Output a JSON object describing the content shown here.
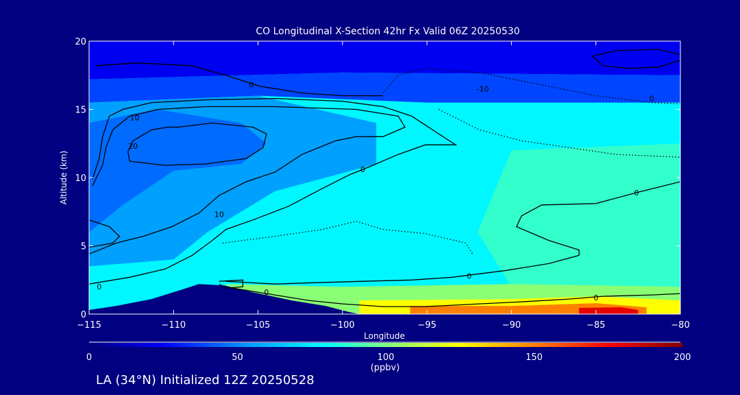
{
  "chart_data": {
    "type": "heatmap",
    "subtype": "filled-contour cross-section",
    "title": "CO Longitudinal X-Section 42hr  Fx Valid 06Z 20250530",
    "xlabel": "Longitude",
    "ylabel": "Altitude (km)",
    "xlim": [
      -115,
      -80
    ],
    "ylim": [
      0,
      20
    ],
    "xticks": [
      -115,
      -110,
      -105,
      -100,
      -95,
      -90,
      -85,
      -80
    ],
    "xtick_labels": [
      "−115",
      "−110",
      "−105",
      "−100",
      "−95",
      "−90",
      "−85",
      "−80"
    ],
    "yticks": [
      0,
      5,
      10,
      15,
      20
    ],
    "ytick_labels": [
      "0",
      "5",
      "10",
      "15",
      "20"
    ],
    "colorbar": {
      "range": [
        0,
        200
      ],
      "ticks": [
        0,
        50,
        100,
        150,
        200
      ],
      "tick_labels": [
        "0",
        "50",
        "100",
        "150",
        "200"
      ],
      "unit_label": "(ppbv)",
      "stops": [
        [
          0,
          "#000080"
        ],
        [
          25,
          "#0000ff"
        ],
        [
          55,
          "#00a0ff"
        ],
        [
          80,
          "#00ffff"
        ],
        [
          100,
          "#80ff80"
        ],
        [
          125,
          "#ffff00"
        ],
        [
          150,
          "#ff8000"
        ],
        [
          175,
          "#ff0000"
        ],
        [
          200,
          "#800000"
        ]
      ]
    },
    "base_value": 78,
    "fill_regions": [
      {
        "value": 22,
        "points": [
          [
            -115,
            20
          ],
          [
            -80,
            20
          ],
          [
            -80,
            17.5
          ],
          [
            -100,
            17.7
          ],
          [
            -115,
            17.2
          ]
        ]
      },
      {
        "value": 38,
        "points": [
          [
            -115,
            17.2
          ],
          [
            -100,
            17.7
          ],
          [
            -80,
            17.5
          ],
          [
            -80,
            15.5
          ],
          [
            -95,
            15.5
          ],
          [
            -105,
            16
          ],
          [
            -115,
            15.5
          ]
        ]
      },
      {
        "value": 55,
        "points": [
          [
            -115,
            15.5
          ],
          [
            -105,
            16
          ],
          [
            -98,
            14
          ],
          [
            -98,
            11
          ],
          [
            -104,
            9
          ],
          [
            -108,
            6
          ],
          [
            -110,
            4
          ],
          [
            -115,
            3.5
          ]
        ]
      },
      {
        "value": 45,
        "points": [
          [
            -115,
            14
          ],
          [
            -111,
            15
          ],
          [
            -106,
            14
          ],
          [
            -104.5,
            12.5
          ],
          [
            -106,
            11
          ],
          [
            -110,
            10.5
          ],
          [
            -113,
            8
          ],
          [
            -115,
            6
          ]
        ]
      },
      {
        "value": 88,
        "points": [
          [
            -90,
            12
          ],
          [
            -80,
            12.5
          ],
          [
            -80,
            2
          ],
          [
            -90,
            2
          ],
          [
            -92,
            6
          ]
        ]
      },
      {
        "value": 102,
        "points": [
          [
            -107,
            2.2
          ],
          [
            -100,
            2
          ],
          [
            -90,
            2.2
          ],
          [
            -80,
            2
          ],
          [
            -80,
            0
          ],
          [
            -104,
            0
          ]
        ]
      },
      {
        "value": 125,
        "points": [
          [
            -99,
            1
          ],
          [
            -90,
            1.1
          ],
          [
            -85,
            1.3
          ],
          [
            -80,
            1
          ],
          [
            -80,
            0
          ],
          [
            -99,
            0
          ]
        ]
      },
      {
        "value": 150,
        "points": [
          [
            -96,
            0.6
          ],
          [
            -90,
            0.6
          ],
          [
            -85,
            0.8
          ],
          [
            -82,
            0.5
          ],
          [
            -82,
            0
          ],
          [
            -96,
            0
          ]
        ]
      },
      {
        "value": 180,
        "points": [
          [
            -86,
            0.45
          ],
          [
            -83.5,
            0.5
          ],
          [
            -82.5,
            0.3
          ],
          [
            -82.5,
            0
          ],
          [
            -86,
            0
          ]
        ]
      }
    ],
    "terrain": [
      [
        -115,
        0
      ],
      [
        -115,
        0.3
      ],
      [
        -113.4,
        0.6
      ],
      [
        -111.3,
        1.1
      ],
      [
        -109.5,
        1.8
      ],
      [
        -108.5,
        2.2
      ],
      [
        -107,
        2.1
      ],
      [
        -105.3,
        1.6
      ],
      [
        -103,
        1.0
      ],
      [
        -101,
        0.6
      ],
      [
        -99.6,
        0.15
      ],
      [
        -99,
        0
      ]
    ],
    "contours": [
      {
        "level": 0,
        "style": "solid",
        "points": [
          [
            -115,
            2.2
          ],
          [
            -112.6,
            2.7
          ],
          [
            -110.5,
            3.3
          ],
          [
            -108.9,
            4.3
          ],
          [
            -107.7,
            5.4
          ],
          [
            -106.9,
            6.2
          ],
          [
            -105.3,
            6.9
          ],
          [
            -103.2,
            7.9
          ],
          [
            -101.2,
            9.2
          ],
          [
            -99.6,
            10.2
          ],
          [
            -98.4,
            10.8
          ],
          [
            -96.7,
            11.7
          ],
          [
            -95.1,
            12.4
          ],
          [
            -93.3,
            12.4
          ],
          [
            -94.3,
            13.2
          ],
          [
            -95.9,
            14.5
          ],
          [
            -97.6,
            15.2
          ],
          [
            -100,
            15.6
          ],
          [
            -104,
            15.8
          ],
          [
            -108.1,
            15.7
          ],
          [
            -111.3,
            15.5
          ],
          [
            -113,
            15
          ],
          [
            -113.8,
            14.5
          ],
          [
            -114.2,
            13
          ],
          [
            -114.4,
            11.4
          ],
          [
            -114.8,
            9.9
          ]
        ]
      },
      {
        "level": 10,
        "style": "solid",
        "points": [
          [
            -115,
            4.4
          ],
          [
            -113.4,
            5.2
          ],
          [
            -111.8,
            5.7
          ],
          [
            -110.1,
            6.4
          ],
          [
            -108.5,
            7.4
          ],
          [
            -107.3,
            8.7
          ],
          [
            -105.7,
            9.7
          ],
          [
            -104,
            10.4
          ],
          [
            -102.4,
            11.7
          ],
          [
            -100.4,
            12.7
          ],
          [
            -99.2,
            13
          ],
          [
            -97.6,
            13
          ],
          [
            -96.3,
            13.7
          ],
          [
            -96.7,
            14.5
          ],
          [
            -99.2,
            15
          ],
          [
            -104,
            15.2
          ],
          [
            -108.1,
            15.2
          ],
          [
            -110.9,
            15
          ],
          [
            -112.6,
            14.5
          ],
          [
            -113.6,
            13.5
          ],
          [
            -114,
            12.2
          ],
          [
            -114.2,
            10.9
          ],
          [
            -114.8,
            9.4
          ]
        ]
      },
      {
        "level": 20,
        "style": "solid",
        "points": [
          [
            -112.6,
            11.2
          ],
          [
            -110.5,
            10.9
          ],
          [
            -108.1,
            11
          ],
          [
            -105.7,
            11.4
          ],
          [
            -104.7,
            12.2
          ],
          [
            -104.5,
            13.2
          ],
          [
            -105.3,
            13.7
          ],
          [
            -107.7,
            14
          ],
          [
            -109.7,
            13.7
          ],
          [
            -110.3,
            13.7
          ],
          [
            -111.3,
            13.5
          ],
          [
            -112.4,
            12.7
          ],
          [
            -112.7,
            11.9
          ],
          [
            -112.6,
            11.2
          ]
        ]
      },
      {
        "level": 20,
        "style": "solid",
        "points": [
          [
            -115,
            6.9
          ],
          [
            -113.8,
            6.4
          ],
          [
            -113.2,
            5.7
          ],
          [
            -113.6,
            5.2
          ],
          [
            -115,
            4.9
          ]
        ]
      },
      {
        "level": 0,
        "style": "solid",
        "points": [
          [
            -106.9,
            2.4
          ],
          [
            -104,
            2.2
          ],
          [
            -101.6,
            2.3
          ],
          [
            -98.8,
            2.4
          ],
          [
            -95.9,
            2.5
          ],
          [
            -93.5,
            2.7
          ],
          [
            -90.3,
            3.2
          ],
          [
            -87.8,
            3.7
          ],
          [
            -86,
            4.3
          ],
          [
            -86,
            4.7
          ],
          [
            -87.8,
            5.4
          ],
          [
            -89.7,
            6.4
          ],
          [
            -89.4,
            7.2
          ],
          [
            -88.2,
            8
          ],
          [
            -85,
            8.1
          ],
          [
            -82.6,
            8.9
          ],
          [
            -80,
            9.7
          ]
        ]
      },
      {
        "level": 0,
        "style": "solid",
        "points": [
          [
            -106.5,
            1.9
          ],
          [
            -104,
            1.4
          ],
          [
            -102,
            1
          ],
          [
            -100,
            0.75
          ],
          [
            -97.6,
            0.55
          ],
          [
            -95.1,
            0.55
          ],
          [
            -91.9,
            0.75
          ],
          [
            -89.4,
            0.9
          ],
          [
            -86.6,
            1.1
          ],
          [
            -84.6,
            1.3
          ],
          [
            -81.7,
            1.4
          ],
          [
            -80,
            1.5
          ]
        ]
      },
      {
        "level": -10,
        "style": "dotted",
        "points": [
          [
            -97.6,
            16.2
          ],
          [
            -96.7,
            17.5
          ],
          [
            -95.1,
            18
          ],
          [
            -91.9,
            17.7
          ],
          [
            -89.9,
            17.2
          ],
          [
            -87.8,
            16.7
          ],
          [
            -85,
            16
          ],
          [
            -81.7,
            15.5
          ],
          [
            -80,
            15.4
          ]
        ]
      },
      {
        "level": -10,
        "style": "dotted",
        "points": [
          [
            -94.3,
            15
          ],
          [
            -91.9,
            13.5
          ],
          [
            -89.4,
            12.7
          ],
          [
            -86.6,
            12.2
          ],
          [
            -83.8,
            11.7
          ],
          [
            -80,
            11.5
          ]
        ]
      },
      {
        "level": -10,
        "style": "solid",
        "points": [
          [
            -85.2,
            18.9
          ],
          [
            -83.8,
            19.3
          ],
          [
            -81.3,
            19.4
          ],
          [
            -80,
            19
          ],
          [
            -80,
            18.6
          ],
          [
            -81.3,
            18.1
          ],
          [
            -83,
            18
          ],
          [
            -84.6,
            18.2
          ],
          [
            -85.2,
            18.9
          ]
        ]
      },
      {
        "level": 0,
        "style": "solid",
        "points": [
          [
            -114.6,
            18.2
          ],
          [
            -112.2,
            18.4
          ],
          [
            -108.9,
            18.2
          ],
          [
            -106.9,
            17.5
          ],
          [
            -104.9,
            16.7
          ],
          [
            -102.4,
            16.2
          ],
          [
            -100,
            16
          ],
          [
            -97.6,
            16
          ]
        ]
      },
      {
        "level": -10,
        "style": "dotted",
        "points": [
          [
            -107.1,
            5.2
          ],
          [
            -104,
            5.7
          ],
          [
            -101.2,
            6.2
          ],
          [
            -99.2,
            6.8
          ],
          [
            -97.6,
            6.2
          ],
          [
            -95.1,
            5.9
          ],
          [
            -92.7,
            5.2
          ],
          [
            -92.3,
            4.4
          ]
        ]
      },
      {
        "level": 10,
        "style": "solid",
        "points": [
          [
            -107.3,
            2.4
          ],
          [
            -105.9,
            2.5
          ],
          [
            -105.9,
            2.0
          ],
          [
            -106.9,
            1.9
          ],
          [
            -107.3,
            2.2
          ]
        ]
      }
    ],
    "contour_labels": [
      {
        "text": "0",
        "x": -98.8,
        "y": 10.6
      },
      {
        "text": "10",
        "x": -112.3,
        "y": 14.4
      },
      {
        "text": "10",
        "x": -107.3,
        "y": 7.3
      },
      {
        "text": "20",
        "x": -112.4,
        "y": 12.3
      },
      {
        "text": "0",
        "x": -114.4,
        "y": 2.0
      },
      {
        "text": "0",
        "x": -92.5,
        "y": 2.8
      },
      {
        "text": "0",
        "x": -82.6,
        "y": 8.9
      },
      {
        "text": "0",
        "x": -104.5,
        "y": 1.6
      },
      {
        "text": "0",
        "x": -85,
        "y": 1.2
      },
      {
        "text": "-10",
        "x": -91.7,
        "y": 16.5
      },
      {
        "text": "0",
        "x": -105.4,
        "y": 16.8
      },
      {
        "text": "0",
        "x": -81.7,
        "y": 15.8
      }
    ]
  },
  "footer": {
    "location_text": "LA (34°N) Initialized 12Z 20250528"
  },
  "colors": {
    "background": "#000080",
    "axis": "#ffffff"
  }
}
